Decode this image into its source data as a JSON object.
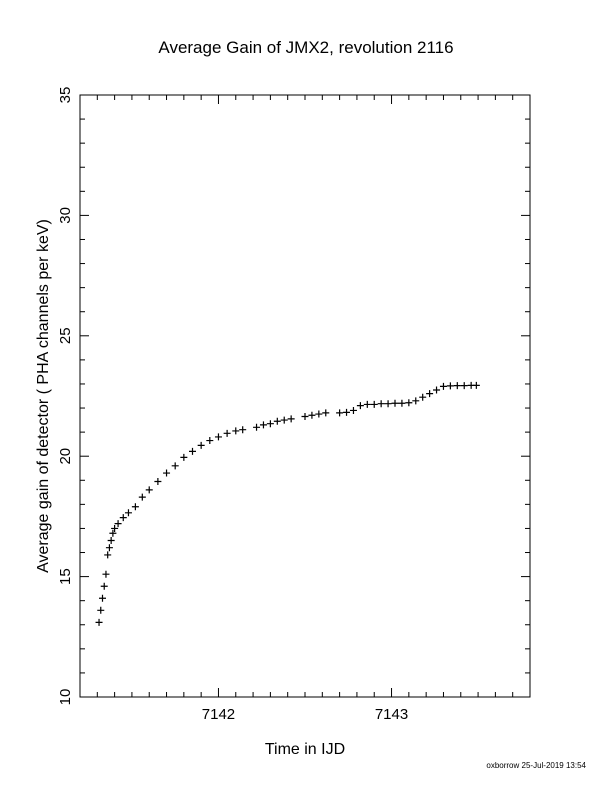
{
  "chart_data": {
    "type": "scatter",
    "title": "Average Gain of JMX2, revolution 2116",
    "xlabel": "Time in IJD",
    "ylabel": "Average gain of detector ( PHA channels per keV)",
    "xlim": [
      7141.2,
      7143.8
    ],
    "ylim": [
      10,
      35
    ],
    "xticks": [
      7142,
      7143
    ],
    "yticks": [
      10,
      15,
      20,
      25,
      30,
      35
    ],
    "marker": "plus",
    "marker_color": "#000000",
    "grid": false,
    "series": [
      {
        "x": [
          7141.31,
          7141.32,
          7141.33,
          7141.34,
          7141.35,
          7141.36,
          7141.37,
          7141.38,
          7141.39,
          7141.4,
          7141.42,
          7141.45,
          7141.48,
          7141.52,
          7141.56,
          7141.6,
          7141.65,
          7141.7,
          7141.75,
          7141.8,
          7141.85,
          7141.9,
          7141.95,
          7142.0,
          7142.05,
          7142.1,
          7142.14,
          7142.22,
          7142.26,
          7142.3,
          7142.34,
          7142.38,
          7142.42,
          7142.5,
          7142.54,
          7142.58,
          7142.62,
          7142.7,
          7142.74,
          7142.78,
          7142.82,
          7142.86,
          7142.9,
          7142.94,
          7142.98,
          7143.02,
          7143.06,
          7143.1,
          7143.14,
          7143.18,
          7143.22,
          7143.26,
          7143.3,
          7143.34,
          7143.38,
          7143.42,
          7143.46,
          7143.49
        ],
        "y": [
          13.1,
          13.6,
          14.1,
          14.6,
          15.1,
          15.9,
          16.2,
          16.5,
          16.8,
          17.0,
          17.2,
          17.45,
          17.65,
          17.9,
          18.3,
          18.6,
          18.95,
          19.3,
          19.6,
          19.95,
          20.2,
          20.45,
          20.65,
          20.8,
          20.95,
          21.05,
          21.1,
          21.2,
          21.3,
          21.35,
          21.45,
          21.5,
          21.55,
          21.65,
          21.7,
          21.75,
          21.8,
          21.8,
          21.82,
          21.9,
          22.1,
          22.15,
          22.15,
          22.18,
          22.18,
          22.2,
          22.2,
          22.22,
          22.3,
          22.45,
          22.6,
          22.75,
          22.9,
          22.92,
          22.93,
          22.93,
          22.94,
          22.94
        ]
      }
    ]
  },
  "footer": {
    "stamp": "oxborrow 25-Jul-2019 13:54"
  }
}
